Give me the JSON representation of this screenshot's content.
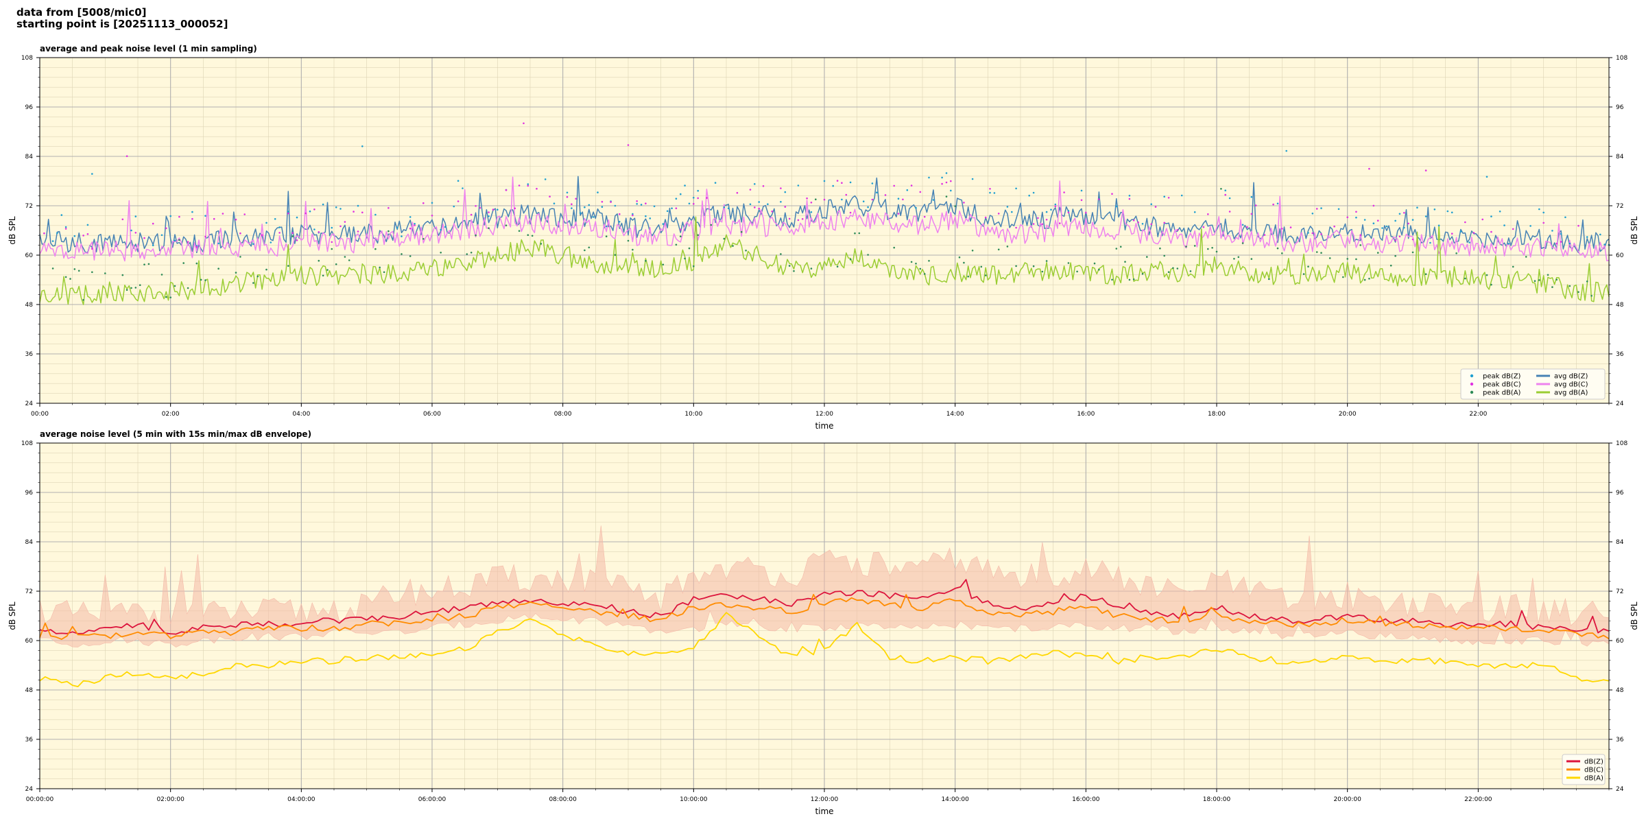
{
  "header": {
    "line1": "data from [5008/mic0]",
    "line2": "starting point is [20251113_000052]"
  },
  "style": {
    "plot_bg": "#fff8dc",
    "grid_major": "#b0b0b0",
    "grid_minor": "#ddd4b5",
    "colors": {
      "peak_z": "#1f9fd0",
      "peak_c": "#e030e0",
      "peak_a": "#2e8b57",
      "avg_z": "#4682b4",
      "avg_c": "#ee82ee",
      "avg_a": "#9acd32",
      "env_z": "#dc143c",
      "env_c": "#ff8c00",
      "env_a": "#ffd700",
      "envelope": "#f4b9a8"
    }
  },
  "chart_data": [
    {
      "type": "line",
      "title": "average and peak noise level (1 min sampling)",
      "xlabel": "time",
      "ylabel": "dB SPL",
      "xlim": [
        0,
        24
      ],
      "ylim": [
        24,
        108
      ],
      "yticks": [
        24,
        36,
        48,
        60,
        72,
        84,
        96,
        108
      ],
      "xticks": [
        {
          "h": 0,
          "label": "00:00"
        },
        {
          "h": 2,
          "label": "02:00"
        },
        {
          "h": 4,
          "label": "04:00"
        },
        {
          "h": 6,
          "label": "06:00"
        },
        {
          "h": 8,
          "label": "08:00"
        },
        {
          "h": 10,
          "label": "10:00"
        },
        {
          "h": 12,
          "label": "12:00"
        },
        {
          "h": 14,
          "label": "14:00"
        },
        {
          "h": 16,
          "label": "16:00"
        },
        {
          "h": 18,
          "label": "18:00"
        },
        {
          "h": 20,
          "label": "20:00"
        },
        {
          "h": 22,
          "label": "22:00"
        }
      ],
      "grid": true,
      "legend": "lower-right",
      "legend_entries": [
        {
          "label": "peak dB(Z)",
          "kind": "dot",
          "color_key": "peak_z"
        },
        {
          "label": "peak dB(C)",
          "kind": "dot",
          "color_key": "peak_c"
        },
        {
          "label": "peak dB(A)",
          "kind": "dot",
          "color_key": "peak_a"
        },
        {
          "label": "avg dB(Z)",
          "kind": "line",
          "color_key": "avg_z"
        },
        {
          "label": "avg dB(C)",
          "kind": "line",
          "color_key": "avg_c"
        },
        {
          "label": "avg dB(A)",
          "kind": "line",
          "color_key": "avg_a"
        }
      ],
      "x": [
        0,
        0.5,
        1,
        1.5,
        2,
        2.5,
        3,
        3.5,
        4,
        4.5,
        5,
        5.5,
        6,
        6.5,
        7,
        7.5,
        8,
        8.5,
        9,
        9.5,
        10,
        10.5,
        11,
        11.5,
        12,
        12.5,
        13,
        13.5,
        14,
        14.5,
        15,
        15.5,
        16,
        16.5,
        17,
        17.5,
        18,
        18.5,
        19,
        19.5,
        20,
        20.5,
        21,
        21.5,
        22,
        22.5,
        23,
        23.5,
        24
      ],
      "series": [
        {
          "name": "avg dB(Z)",
          "color_key": "avg_z",
          "values": [
            64,
            63,
            63,
            63,
            63,
            63,
            64,
            64,
            65,
            65,
            65,
            66,
            67,
            68,
            69,
            70,
            69,
            69,
            67,
            66,
            69,
            70,
            70,
            69,
            71,
            72,
            71,
            70,
            72,
            69,
            68,
            69,
            70,
            68,
            67,
            66,
            67,
            66,
            65,
            65,
            66,
            65,
            65,
            64,
            64,
            64,
            64,
            63,
            63
          ]
        },
        {
          "name": "avg dB(C)",
          "color_key": "avg_c",
          "values": [
            61,
            61,
            61,
            61,
            61,
            62,
            62,
            62,
            63,
            63,
            63,
            64,
            65,
            66,
            67,
            68,
            67,
            67,
            65,
            64,
            66,
            67,
            67,
            67,
            68,
            69,
            68,
            67,
            69,
            66,
            65,
            66,
            67,
            66,
            65,
            64,
            65,
            64,
            63,
            63,
            64,
            63,
            63,
            62,
            62,
            62,
            62,
            61,
            61
          ]
        },
        {
          "name": "avg dB(A)",
          "color_key": "avg_a",
          "values": [
            51,
            50,
            51,
            51,
            51,
            52,
            53,
            54,
            55,
            55,
            55,
            56,
            57,
            58,
            60,
            62,
            60,
            58,
            57,
            57,
            58,
            63,
            60,
            56,
            57,
            60,
            56,
            55,
            56,
            55,
            56,
            56,
            56,
            55,
            56,
            56,
            58,
            56,
            55,
            55,
            56,
            55,
            55,
            55,
            54,
            54,
            53,
            51,
            51
          ]
        },
        {
          "name": "peak dB(Z)",
          "color_key": "peak_z",
          "values": [
            67,
            65,
            66,
            66,
            66,
            66,
            67,
            67,
            68,
            68,
            68,
            69,
            70,
            72,
            73,
            75,
            73,
            72,
            70,
            69,
            73,
            74,
            74,
            73,
            75,
            76,
            75,
            74,
            76,
            73,
            72,
            73,
            74,
            72,
            71,
            70,
            72,
            70,
            69,
            68,
            70,
            69,
            68,
            67,
            67,
            67,
            67,
            66,
            66
          ]
        },
        {
          "name": "peak dB(C)",
          "color_key": "peak_c",
          "values": [
            66,
            64,
            65,
            65,
            65,
            66,
            66,
            66,
            67,
            67,
            67,
            68,
            69,
            71,
            72,
            74,
            72,
            71,
            69,
            68,
            72,
            73,
            73,
            72,
            74,
            75,
            74,
            73,
            75,
            72,
            71,
            72,
            73,
            71,
            70,
            69,
            71,
            69,
            68,
            67,
            69,
            68,
            67,
            66,
            66,
            66,
            66,
            65,
            65
          ]
        },
        {
          "name": "peak dB(A)",
          "color_key": "peak_a",
          "values": [
            54,
            53,
            53,
            54,
            54,
            55,
            56,
            57,
            58,
            58,
            58,
            59,
            60,
            61,
            63,
            65,
            63,
            61,
            60,
            60,
            61,
            66,
            63,
            59,
            60,
            63,
            59,
            58,
            59,
            58,
            59,
            59,
            59,
            58,
            59,
            59,
            61,
            59,
            58,
            58,
            59,
            58,
            58,
            58,
            57,
            57,
            56,
            54,
            54
          ]
        }
      ]
    },
    {
      "type": "line",
      "title": "average noise level (5 min with 15s min/max dB envelope)",
      "xlabel": "time",
      "ylabel": "dB SPL",
      "xlim": [
        0,
        24
      ],
      "ylim": [
        24,
        108
      ],
      "yticks": [
        24,
        36,
        48,
        60,
        72,
        84,
        96,
        108
      ],
      "xticks": [
        {
          "h": 0,
          "label": "00:00:00"
        },
        {
          "h": 2,
          "label": "02:00:00"
        },
        {
          "h": 4,
          "label": "04:00:00"
        },
        {
          "h": 6,
          "label": "06:00:00"
        },
        {
          "h": 8,
          "label": "08:00:00"
        },
        {
          "h": 10,
          "label": "10:00:00"
        },
        {
          "h": 12,
          "label": "12:00:00"
        },
        {
          "h": 14,
          "label": "14:00:00"
        },
        {
          "h": 16,
          "label": "16:00:00"
        },
        {
          "h": 18,
          "label": "18:00:00"
        },
        {
          "h": 20,
          "label": "20:00:00"
        },
        {
          "h": 22,
          "label": "22:00:00"
        }
      ],
      "grid": true,
      "legend": "lower-right",
      "legend_entries": [
        {
          "label": "dB(Z)",
          "kind": "line",
          "color_key": "env_z"
        },
        {
          "label": "dB(C)",
          "kind": "line",
          "color_key": "env_c"
        },
        {
          "label": "dB(A)",
          "kind": "line",
          "color_key": "env_a"
        }
      ],
      "x": [
        0,
        0.5,
        1,
        1.5,
        2,
        2.5,
        3,
        3.5,
        4,
        4.5,
        5,
        5.5,
        6,
        6.5,
        7,
        7.5,
        8,
        8.5,
        9,
        9.5,
        10,
        10.5,
        11,
        11.5,
        12,
        12.5,
        13,
        13.5,
        14,
        14.5,
        15,
        15.5,
        16,
        16.5,
        17,
        17.5,
        18,
        18.5,
        19,
        19.5,
        20,
        20.5,
        21,
        21.5,
        22,
        22.5,
        23,
        23.5,
        24
      ],
      "series": [
        {
          "name": "dB(Z)",
          "color_key": "env_z",
          "values": [
            63,
            62,
            63,
            64,
            62,
            63,
            64,
            64,
            64,
            65,
            65,
            66,
            67,
            68,
            69,
            70,
            69,
            69,
            67,
            66,
            70,
            71,
            70,
            69,
            71,
            72,
            71,
            70,
            73,
            69,
            68,
            69,
            71,
            68,
            67,
            66,
            68,
            66,
            65,
            65,
            66,
            65,
            65,
            64,
            64,
            64,
            63,
            63,
            62
          ]
        },
        {
          "name": "dB(C)",
          "color_key": "env_c",
          "values": [
            61,
            61,
            61,
            62,
            61,
            62,
            62,
            63,
            63,
            63,
            64,
            64,
            65,
            66,
            68,
            69,
            68,
            67,
            66,
            65,
            68,
            69,
            68,
            67,
            69,
            70,
            69,
            68,
            70,
            67,
            66,
            67,
            68,
            66,
            65,
            65,
            66,
            65,
            64,
            64,
            65,
            64,
            64,
            63,
            63,
            63,
            62,
            62,
            61
          ]
        },
        {
          "name": "dB(A)",
          "color_key": "env_a",
          "values": [
            51,
            49,
            51,
            52,
            51,
            52,
            54,
            54,
            55,
            55,
            56,
            56,
            57,
            58,
            62,
            65,
            61,
            59,
            57,
            57,
            58,
            66,
            61,
            56,
            58,
            64,
            56,
            55,
            56,
            55,
            56,
            57,
            56,
            55,
            56,
            56,
            58,
            56,
            55,
            55,
            56,
            55,
            55,
            55,
            54,
            54,
            54,
            51,
            50
          ]
        },
        {
          "name": "envelope max",
          "values": [
            68,
            66,
            66,
            67,
            66,
            66,
            67,
            67,
            67,
            68,
            68,
            72,
            72,
            73,
            75,
            75,
            75,
            74,
            72,
            70,
            76,
            78,
            77,
            76,
            79,
            79,
            78,
            77,
            80,
            77,
            75,
            76,
            78,
            75,
            73,
            71,
            75,
            72,
            70,
            70,
            71,
            70,
            69,
            68,
            68,
            68,
            67,
            67,
            66
          ]
        },
        {
          "name": "envelope min",
          "values": [
            60,
            59,
            60,
            60,
            59,
            60,
            61,
            61,
            61,
            62,
            62,
            62,
            63,
            64,
            65,
            66,
            65,
            65,
            63,
            62,
            63,
            64,
            63,
            63,
            63,
            64,
            63,
            63,
            64,
            63,
            63,
            63,
            64,
            63,
            63,
            62,
            63,
            62,
            61,
            61,
            62,
            61,
            61,
            60,
            60,
            60,
            60,
            59,
            59
          ]
        }
      ]
    }
  ]
}
